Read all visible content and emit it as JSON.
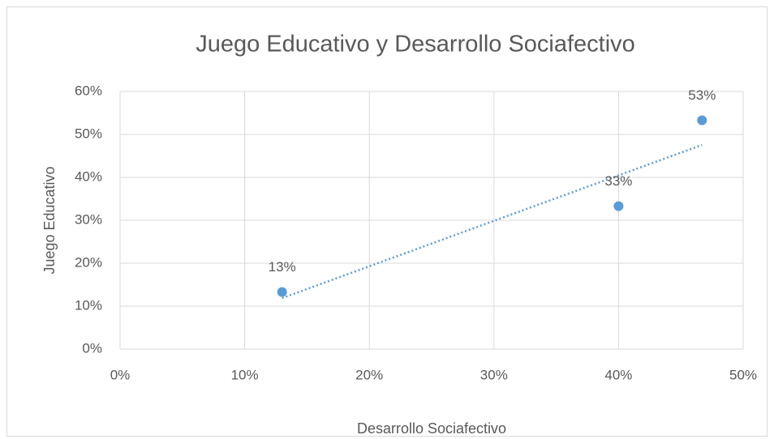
{
  "chart_data": {
    "type": "scatter",
    "title": "Juego Educativo y Desarrollo Sociafectivo",
    "xlabel": "Desarrollo Sociafectivo",
    "ylabel": "Juego Educativo",
    "x": [
      13,
      40,
      46.7
    ],
    "values": [
      13.3,
      33.3,
      53.3
    ],
    "value_labels": [
      "13%",
      "33%",
      "53%"
    ],
    "color": "#5b9bd5",
    "trendline": true,
    "grid": true,
    "xlim": [
      0,
      50
    ],
    "xticks": [
      {
        "value": 0,
        "label": "0%"
      },
      {
        "value": 10,
        "label": "10%"
      },
      {
        "value": 20,
        "label": "20%"
      },
      {
        "value": 30,
        "label": "30%"
      },
      {
        "value": 40,
        "label": "40%"
      },
      {
        "value": 50,
        "label": "50%"
      }
    ],
    "ylim": [
      0,
      60
    ],
    "yticks": [
      {
        "value": 0,
        "label": "0%"
      },
      {
        "value": 10,
        "label": "10%"
      },
      {
        "value": 20,
        "label": "20%"
      },
      {
        "value": 30,
        "label": "30%"
      },
      {
        "value": 40,
        "label": "40%"
      },
      {
        "value": 50,
        "label": "50%"
      },
      {
        "value": 60,
        "label": "60%"
      }
    ]
  }
}
